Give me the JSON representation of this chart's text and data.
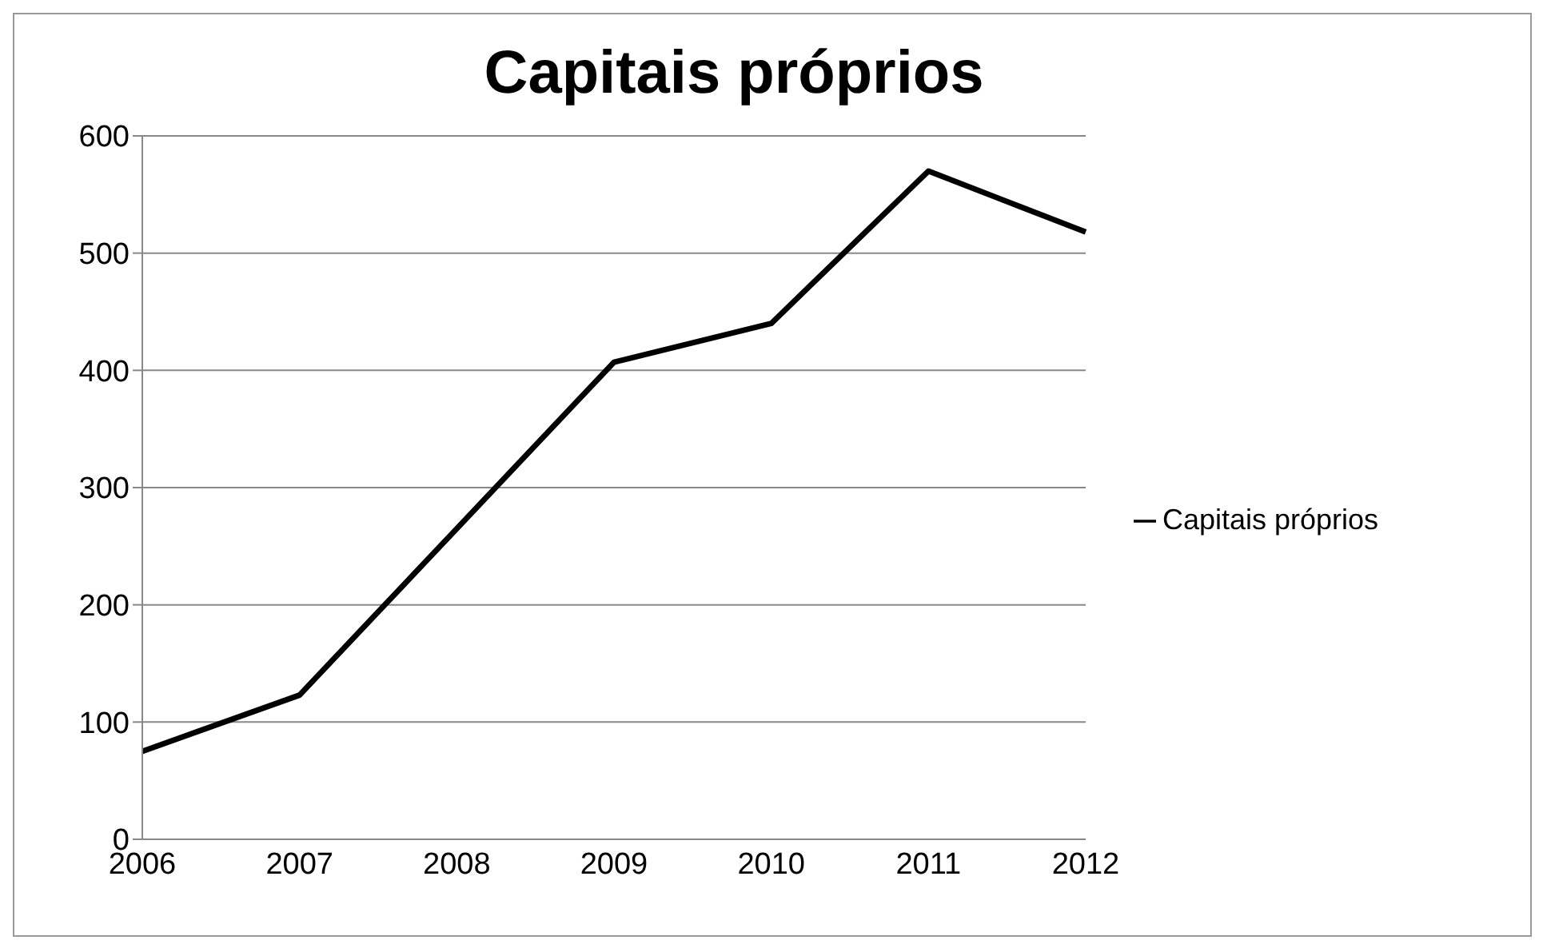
{
  "chart_data": {
    "type": "line",
    "title": "Capitais próprios",
    "categories": [
      "2006",
      "2007",
      "2008",
      "2009",
      "2010",
      "2011",
      "2012"
    ],
    "series": [
      {
        "name": "Capitais próprios",
        "color": "#000000",
        "values": [
          75,
          123,
          265,
          407,
          440,
          570,
          518
        ]
      }
    ],
    "ylim": [
      0,
      600
    ],
    "yticks": [
      0,
      100,
      200,
      300,
      400,
      500,
      600
    ],
    "grid": "y",
    "legend": "right",
    "marker": "none",
    "line_style": "solid"
  }
}
